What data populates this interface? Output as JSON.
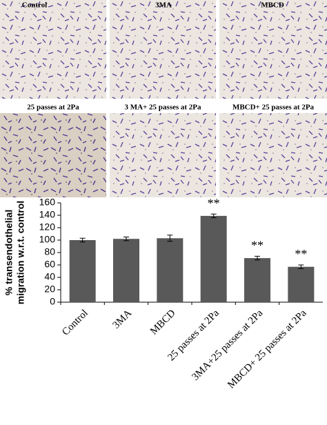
{
  "panels": [
    {
      "label": "Control"
    },
    {
      "label": "3MA"
    },
    {
      "label": "MBCD"
    },
    {
      "label": "25 passes at 2Pa"
    },
    {
      "label": "3 MA+ 25 passes at 2Pa"
    },
    {
      "label": "MBCD+ 25 passes at 2Pa"
    }
  ],
  "chart_data": {
    "type": "bar",
    "ylabel": [
      "% transendothelial",
      "migration w.r.t. control"
    ],
    "categories": [
      "Control",
      "3MA",
      "MBCD",
      "25 passes at 2Pa",
      "3MA+25 passes at 2Pa",
      "MBCD+ 25 passes at 2Pa"
    ],
    "values": [
      100,
      102,
      103,
      139,
      71,
      57
    ],
    "errors": [
      3,
      3,
      5,
      3,
      3,
      3
    ],
    "significance": [
      null,
      null,
      null,
      "**",
      "**",
      "**"
    ],
    "color": "#595959",
    "ylim": [
      0,
      160
    ],
    "yticks": [
      0,
      20,
      40,
      60,
      80,
      100,
      120,
      140,
      160
    ]
  }
}
